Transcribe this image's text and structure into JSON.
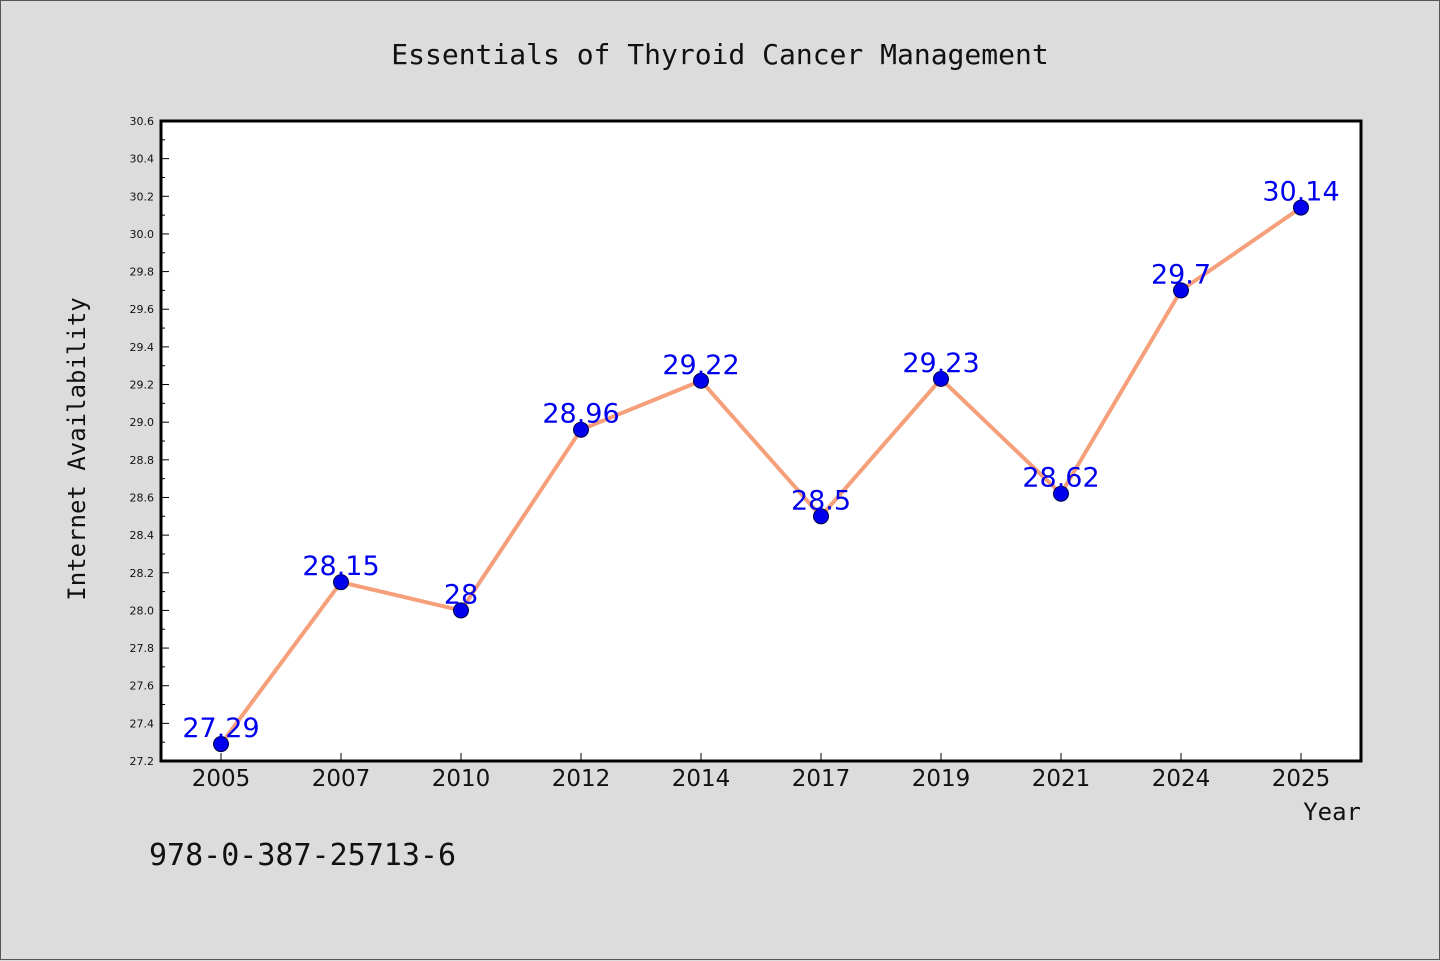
{
  "chart_data": {
    "type": "line",
    "title": "Essentials of Thyroid Cancer Management",
    "xlabel": "Year",
    "ylabel": "Internet Availability",
    "categories": [
      "2005",
      "2007",
      "2010",
      "2012",
      "2014",
      "2017",
      "2019",
      "2021",
      "2024",
      "2025"
    ],
    "series": [
      {
        "values": [
          27.29,
          28.15,
          28.0,
          28.96,
          29.22,
          28.5,
          29.23,
          28.62,
          29.7,
          30.14
        ],
        "data_labels": [
          "27.29",
          "28.15",
          "28",
          "28.96",
          "29.22",
          "28.5",
          "29.23",
          "28.62",
          "29.7",
          "30.14"
        ],
        "line_color": "#f5a07a",
        "marker_color": "#0000ee"
      }
    ],
    "ylim": [
      27.2,
      30.6
    ],
    "yticks": [
      "27.2",
      "27.4",
      "27.6",
      "27.8",
      "28.0",
      "28.2",
      "28.4",
      "28.6",
      "28.8",
      "29.0",
      "29.2",
      "29.4",
      "29.6",
      "29.8",
      "30.0",
      "30.2",
      "30.4",
      "30.6"
    ],
    "grid": false,
    "legend": "none"
  },
  "footer": {
    "isbn": "978-0-387-25713-6"
  },
  "colors": {
    "background": "#dcdcdc",
    "plot_background": "#ffffff"
  }
}
